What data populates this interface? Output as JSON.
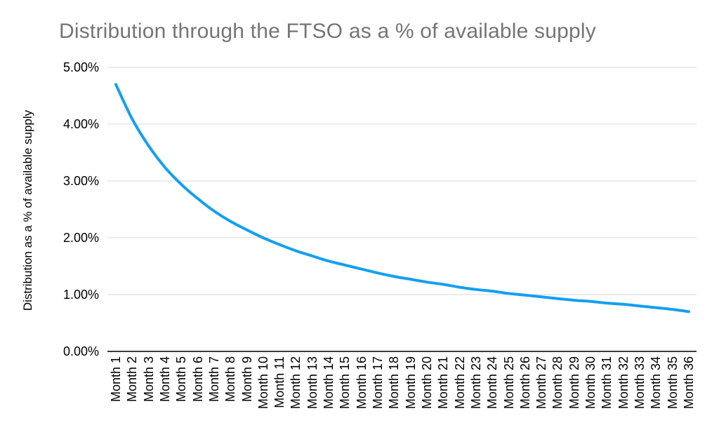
{
  "chart_data": {
    "type": "line",
    "title": "Distribution through the FTSO as a % of available supply",
    "ylabel": "Distribution as a % of available supply",
    "xlabel": "",
    "categories": [
      "Month 1",
      "Month 2",
      "Month 3",
      "Month 4",
      "Month 5",
      "Month 6",
      "Month 7",
      "Month 8",
      "Month 9",
      "Month 10",
      "Month 11",
      "Month 12",
      "Month 13",
      "Month 14",
      "Month 15",
      "Month 16",
      "Month 17",
      "Month 18",
      "Month 19",
      "Month 20",
      "Month 21",
      "Month 22",
      "Month 23",
      "Month 24",
      "Month 25",
      "Month 26",
      "Month 27",
      "Month 28",
      "Month 29",
      "Month 30",
      "Month 31",
      "Month 32",
      "Month 33",
      "Month 34",
      "Month 35",
      "Month 36"
    ],
    "values": [
      4.7,
      4.09,
      3.62,
      3.24,
      2.94,
      2.69,
      2.47,
      2.29,
      2.14,
      2.0,
      1.88,
      1.77,
      1.68,
      1.59,
      1.52,
      1.45,
      1.38,
      1.32,
      1.27,
      1.22,
      1.18,
      1.13,
      1.09,
      1.06,
      1.02,
      0.99,
      0.96,
      0.93,
      0.9,
      0.88,
      0.85,
      0.83,
      0.8,
      0.77,
      0.74,
      0.7
    ],
    "value_unit": "%",
    "ylim": [
      0,
      5
    ],
    "yticks": [
      "5.00%",
      "4.00%",
      "3.00%",
      "2.00%",
      "1.00%",
      "0.00%"
    ],
    "grid": "horizontal",
    "legend": "none",
    "smooth": true,
    "colors": {
      "line": "#149ff1",
      "grid": "#d9d9d9",
      "axis": "#3c3c3c",
      "title": "#757575",
      "ticks": "#000000"
    }
  }
}
